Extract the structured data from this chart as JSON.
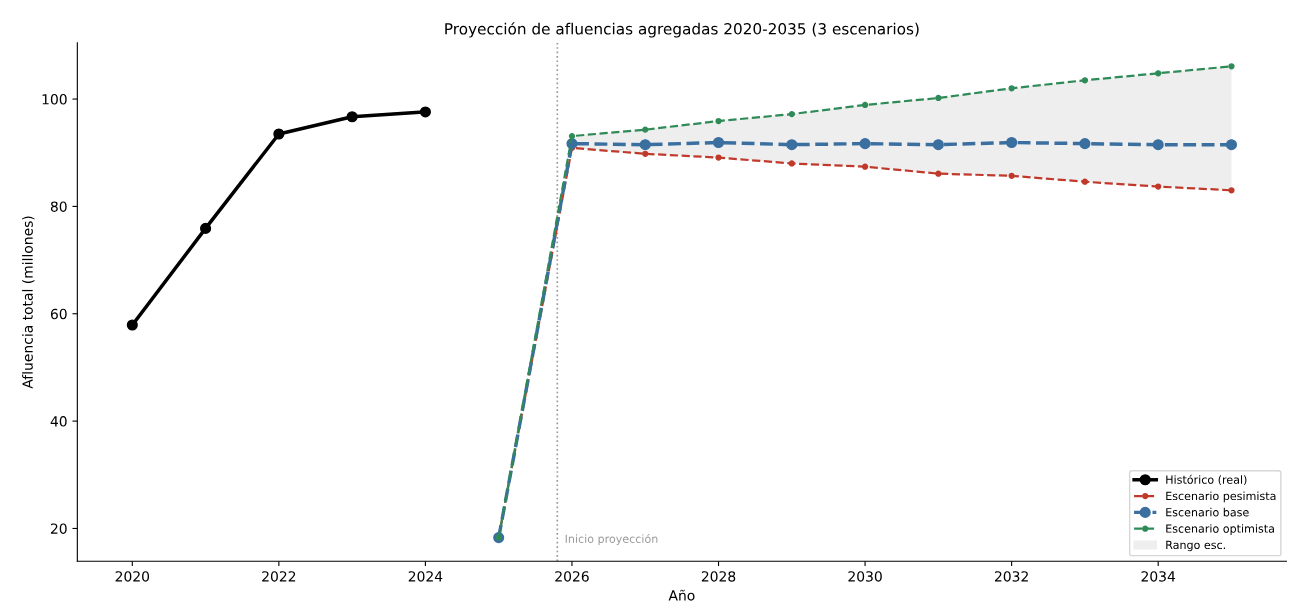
{
  "chart_data": {
    "type": "line",
    "title": "Proyección de afluencias agregadas 2020-2035 (3 escenarios)",
    "xlabel": "Año",
    "ylabel": "Afluencia total (millones)",
    "series": [
      {
        "name": "Histórico (real)",
        "color": "#000000",
        "marker": "circle",
        "line_style": "solid",
        "x": [
          2020,
          2021,
          2022,
          2023,
          2024
        ],
        "values": [
          57.9,
          75.9,
          93.5,
          96.7,
          97.6
        ]
      },
      {
        "name": "Escenario pesimista",
        "color": "#c0392b",
        "marker": "circle",
        "line_style": "dashed",
        "x": [
          2025,
          2026,
          2027,
          2028,
          2029,
          2030,
          2031,
          2032,
          2033,
          2034,
          2035
        ],
        "values": [
          18.3,
          90.9,
          89.8,
          89.1,
          88.0,
          87.4,
          86.1,
          85.7,
          84.6,
          83.7,
          83.0
        ]
      },
      {
        "name": "Escenario base",
        "color": "#3a6fa0",
        "marker": "circle",
        "line_style": "dashed",
        "x": [
          2025,
          2026,
          2027,
          2028,
          2029,
          2030,
          2031,
          2032,
          2033,
          2034,
          2035
        ],
        "values": [
          18.3,
          91.7,
          91.5,
          91.9,
          91.5,
          91.7,
          91.5,
          91.9,
          91.7,
          91.5,
          91.5
        ]
      },
      {
        "name": "Escenario optimista",
        "color": "#2e8b57",
        "marker": "circle",
        "line_style": "dashed",
        "x": [
          2025,
          2026,
          2027,
          2028,
          2029,
          2030,
          2031,
          2032,
          2033,
          2034,
          2035
        ],
        "values": [
          18.3,
          93.1,
          94.3,
          95.9,
          97.2,
          98.9,
          100.2,
          102.0,
          103.5,
          104.8,
          106.1
        ]
      },
      {
        "name": "Rango esc.",
        "type": "area",
        "color": "#eeeeee",
        "x": [
          2026,
          2027,
          2028,
          2029,
          2030,
          2031,
          2032,
          2033,
          2034,
          2035
        ],
        "values": [
          null,
          null,
          null,
          null,
          null,
          null,
          null,
          null,
          null,
          null
        ],
        "lower": [
          90.9,
          89.8,
          89.1,
          88.0,
          87.4,
          86.1,
          85.7,
          84.6,
          83.7,
          83.0
        ],
        "upper": [
          93.1,
          94.3,
          95.9,
          97.2,
          98.9,
          100.2,
          102.0,
          103.5,
          104.8,
          106.1
        ]
      }
    ],
    "ref_lines": [
      {
        "axis": "x",
        "value": 2025.8,
        "label": "Inicio proyección",
        "color": "#999999",
        "line_style": "dotted"
      }
    ],
    "xlim": [
      2019.25,
      2035.75
    ],
    "xticks": [
      2020,
      2022,
      2024,
      2026,
      2028,
      2030,
      2032,
      2034
    ],
    "ylim": [
      13.9,
      110.5
    ],
    "yticks": [
      20,
      40,
      60,
      80,
      100
    ],
    "grid": false,
    "legend": "bottom right"
  }
}
